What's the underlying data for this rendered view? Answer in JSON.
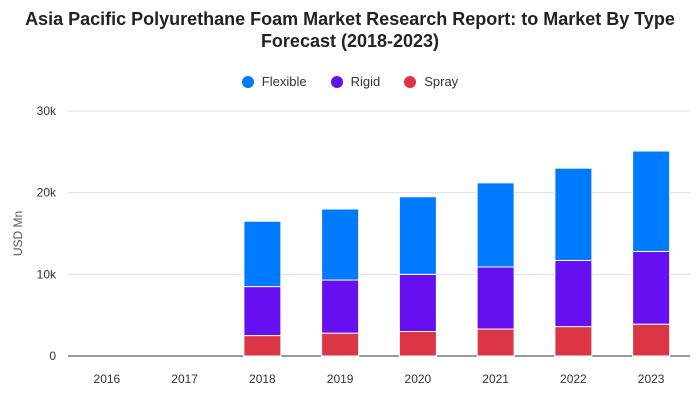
{
  "chart_data": {
    "type": "bar",
    "stacked": true,
    "title": "Asia Pacific Polyurethane Foam Market Research Report: to Market By Type Forecast (2018-2023)",
    "ylabel": "USD Mn",
    "xlabel": "",
    "categories": [
      "2016",
      "2017",
      "2018",
      "2019",
      "2020",
      "2021",
      "2022",
      "2023"
    ],
    "ylim": [
      0,
      30000
    ],
    "yticks": [
      {
        "value": 0,
        "label": "0"
      },
      {
        "value": 10000,
        "label": "10k"
      },
      {
        "value": 20000,
        "label": "20k"
      },
      {
        "value": 30000,
        "label": "30k"
      }
    ],
    "series": [
      {
        "name": "Spray",
        "color": "#dc3545",
        "values": [
          null,
          null,
          2500,
          2800,
          3000,
          3300,
          3600,
          3900
        ]
      },
      {
        "name": "Rigid",
        "color": "#6610f2",
        "values": [
          null,
          null,
          6000,
          6500,
          7000,
          7600,
          8100,
          8900
        ]
      },
      {
        "name": "Flexible",
        "color": "#007bff",
        "values": [
          null,
          null,
          8000,
          8700,
          9500,
          10300,
          11300,
          12300
        ]
      }
    ],
    "legend_order": [
      "Flexible",
      "Rigid",
      "Spray"
    ],
    "legend_position": "top",
    "grid": true
  }
}
